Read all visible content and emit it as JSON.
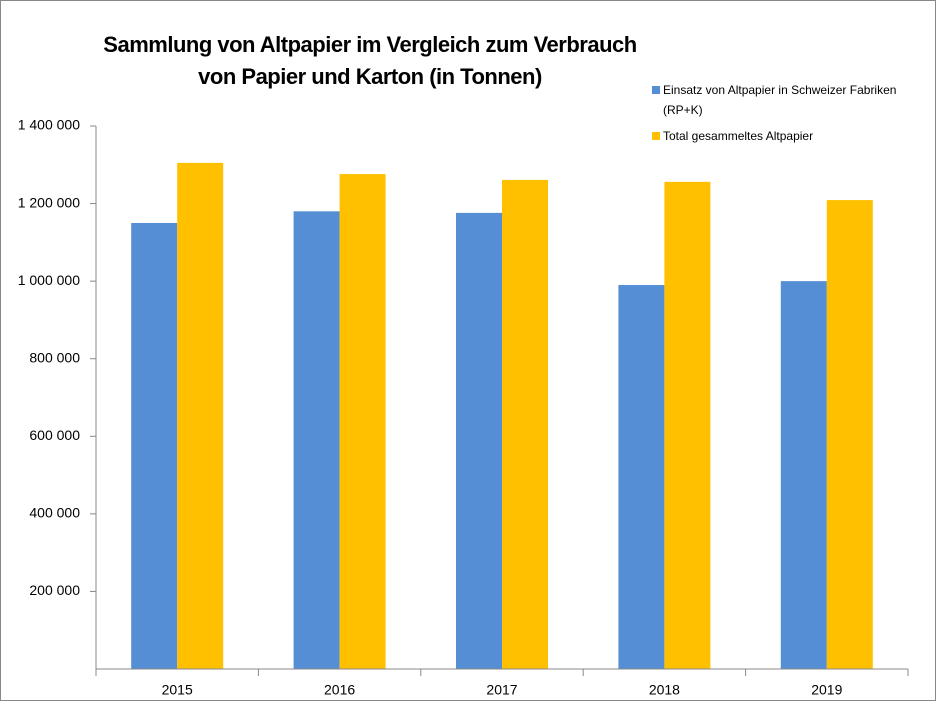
{
  "chart_data": {
    "type": "bar",
    "title": [
      "Sammlung von Altpapier im Vergleich zum Verbrauch",
      "von Papier  und Karton (in Tonnen)"
    ],
    "categories": [
      "2015",
      "2016",
      "2017",
      "2018",
      "2019"
    ],
    "series": [
      {
        "name": "Einsatz von Altpapier in Schweizer Fabriken (RP+K)",
        "color": "#558ed5",
        "values": [
          1150000,
          1180000,
          1176000,
          990000,
          1000000
        ]
      },
      {
        "name": "Total gesammeltes Altpapier",
        "color": "#ffc000",
        "values": [
          1305000,
          1276000,
          1261000,
          1256000,
          1209000
        ]
      }
    ],
    "ylim": [
      0,
      1400000
    ],
    "yticks": [
      {
        "value": 200000,
        "label": "200 000"
      },
      {
        "value": 400000,
        "label": "400 000"
      },
      {
        "value": 600000,
        "label": "600 000"
      },
      {
        "value": 800000,
        "label": "800 000"
      },
      {
        "value": 1000000,
        "label": "1 000 000"
      },
      {
        "value": 1200000,
        "label": "1 200 000"
      },
      {
        "value": 1400000,
        "label": "1 400 000"
      }
    ],
    "grid": false,
    "legend": "top-right"
  }
}
